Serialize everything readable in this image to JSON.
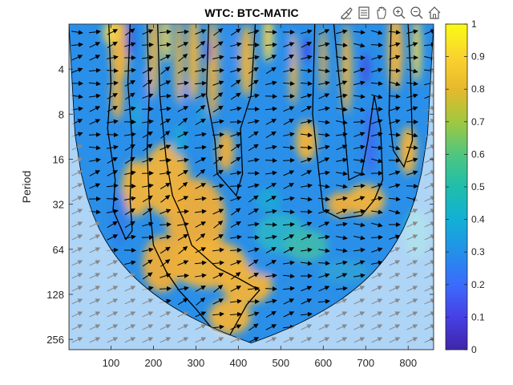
{
  "chart_data": {
    "type": "heatmap",
    "title": "WTC: BTC-MATIC",
    "xlabel": "",
    "ylabel": "Period",
    "xlim": [
      1,
      860
    ],
    "ylim_period": [
      2,
      300
    ],
    "y_scale": "log2",
    "y_reversed": true,
    "x_ticks": [
      100,
      200,
      300,
      400,
      500,
      600,
      700,
      800
    ],
    "y_ticks": [
      4,
      8,
      16,
      32,
      64,
      128,
      256
    ],
    "x_tick_labels": [
      "100",
      "200",
      "300",
      "400",
      "500",
      "600",
      "700",
      "800"
    ],
    "y_tick_labels": [
      "4",
      "8",
      "16",
      "32",
      "64",
      "128",
      "256"
    ],
    "colorbar": {
      "min": 0,
      "max": 1,
      "ticks": [
        0,
        0.1,
        0.2,
        0.3,
        0.4,
        0.5,
        0.6,
        0.7,
        0.8,
        0.9,
        1
      ],
      "tick_labels": [
        "0",
        "0.1",
        "0.2",
        "0.3",
        "0.4",
        "0.5",
        "0.6",
        "0.7",
        "0.8",
        "0.9",
        "1"
      ],
      "colormap": "parula"
    },
    "overlay": "phase arrows, cone of influence shaded, black contours at significance level",
    "grid": false
  },
  "toolbar": {
    "icons": [
      "brush-icon",
      "data-tips-icon",
      "pan-icon",
      "zoom-in-icon",
      "zoom-out-icon",
      "home-icon"
    ]
  }
}
